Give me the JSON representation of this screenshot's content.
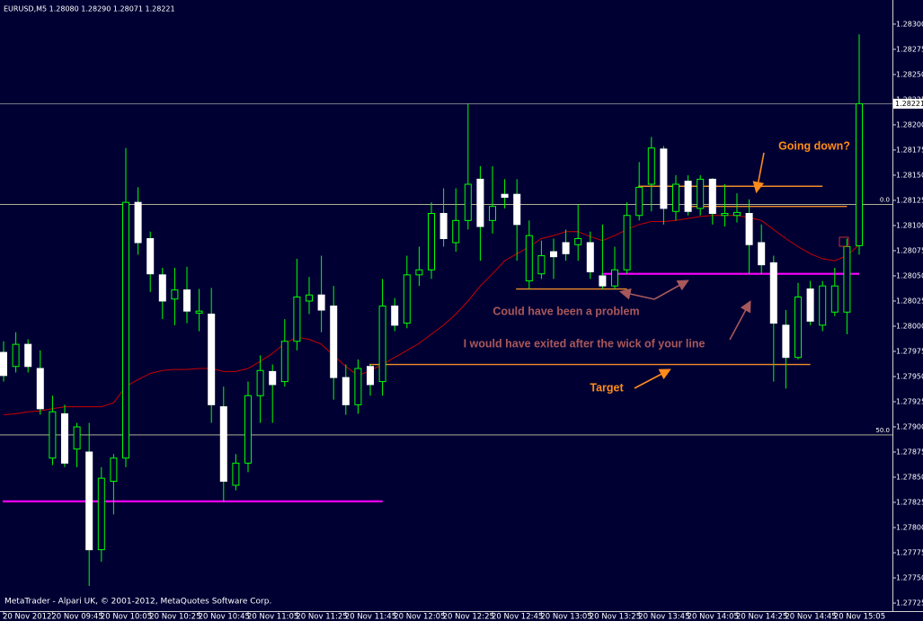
{
  "chart_data": {
    "type": "candlestick",
    "subtitle": "EURUSD,M5  1.28080 1.28290 1.28071 1.28221",
    "footer": "MetaTrader - Alpari UK, © 2001-2012, MetaQuotes Software Corp.",
    "categories": [
      "20 Nov 2012",
      null,
      null,
      null,
      "20 Nov 09:45",
      null,
      null,
      null,
      "20 Nov 10:05",
      null,
      null,
      null,
      "20 Nov 10:25",
      null,
      null,
      null,
      "20 Nov 10:45",
      null,
      null,
      null,
      "20 Nov 11:05",
      null,
      null,
      null,
      "20 Nov 11:25",
      null,
      null,
      null,
      "20 Nov 11:45",
      null,
      null,
      null,
      "20 Nov 12:05",
      null,
      null,
      null,
      "20 Nov 12:25",
      null,
      null,
      null,
      "20 Nov 12:45",
      null,
      null,
      null,
      "20 Nov 13:05",
      null,
      null,
      null,
      "20 Nov 13:25",
      null,
      null,
      null,
      "20 Nov 13:45",
      null,
      null,
      null,
      "20 Nov 14:05",
      null,
      null,
      null,
      "20 Nov 14:25",
      null,
      null,
      null,
      "20 Nov 14:45",
      null,
      null,
      null,
      "20 Nov 15:05",
      null,
      null
    ],
    "open": [
      1.27974,
      1.2796,
      1.27982,
      1.27958,
      1.27869,
      1.27913,
      1.27878,
      1.27875,
      1.27778,
      1.27846,
      1.27869,
      1.28123,
      1.28087,
      1.28051,
      1.28027,
      1.28036,
      1.28013,
      1.28012,
      1.2792,
      1.27842,
      1.27864,
      1.27931,
      1.27955,
      1.27945,
      1.27985,
      1.28025,
      1.28031,
      1.2802,
      1.27949,
      1.27922,
      1.2796,
      1.27945,
      1.2802,
      1.28003,
      1.28051,
      1.28056,
      1.28112,
      1.28083,
      1.28105,
      1.28146,
      1.28105,
      1.28131,
      1.28131,
      1.28045,
      1.28052,
      1.28074,
      1.28083,
      1.28081,
      1.28083,
      1.2805,
      1.2804,
      1.28056,
      1.2811,
      1.28141,
      1.28176,
      1.28114,
      1.28144,
      1.28117,
      1.28146,
      1.2811,
      1.2811,
      1.28112,
      1.28083,
      1.28063,
      1.28001,
      1.27969,
      1.28037,
      1.28001,
      1.28014,
      1.28014,
      1.2808
    ],
    "high": [
      1.27985,
      1.27994,
      1.27987,
      1.27976,
      1.27931,
      1.27922,
      1.27904,
      1.27904,
      1.2786,
      1.27873,
      1.28177,
      1.28138,
      1.28094,
      1.28058,
      1.28058,
      1.28059,
      1.28037,
      1.28038,
      1.2794,
      1.27873,
      1.27945,
      1.27971,
      1.27962,
      1.28007,
      1.28067,
      1.28049,
      1.2807,
      1.2804,
      1.27962,
      1.27967,
      1.27962,
      1.28047,
      1.28028,
      1.2807,
      1.28079,
      1.28123,
      1.28137,
      1.28137,
      1.28221,
      1.28159,
      1.28159,
      1.28146,
      1.28146,
      1.28105,
      1.28085,
      1.28087,
      1.28096,
      1.28121,
      1.28094,
      1.28101,
      1.28079,
      1.28123,
      1.28163,
      1.28188,
      1.28179,
      1.2815,
      1.2815,
      1.2815,
      1.28147,
      1.28141,
      1.28132,
      1.28126,
      1.28101,
      1.2807,
      1.28016,
      1.28043,
      1.28045,
      1.28045,
      1.28058,
      1.28087,
      1.2829
    ],
    "low": [
      1.27945,
      1.27954,
      1.27954,
      1.27912,
      1.27862,
      1.2786,
      1.2786,
      1.27742,
      1.27766,
      1.27813,
      1.2786,
      1.28071,
      1.28034,
      1.28007,
      1.28001,
      1.28003,
      1.27995,
      1.27904,
      1.27826,
      1.27837,
      1.27855,
      1.27904,
      1.27904,
      1.2794,
      1.27976,
      1.28012,
      1.27994,
      1.27927,
      1.27912,
      1.27913,
      1.27931,
      1.27931,
      1.27995,
      1.27998,
      1.2804,
      1.28047,
      1.28079,
      1.28074,
      1.28096,
      1.28065,
      1.28092,
      1.28117,
      1.28065,
      1.28037,
      1.28047,
      1.28047,
      1.28065,
      1.28065,
      1.28047,
      1.28037,
      1.28037,
      1.28052,
      1.28105,
      1.28114,
      1.28101,
      1.28105,
      1.2811,
      1.2811,
      1.28101,
      1.28099,
      1.28103,
      1.28052,
      1.28052,
      1.27945,
      1.27938,
      1.27967,
      1.28001,
      1.27995,
      1.2801,
      1.27992,
      1.28071
    ],
    "close": [
      1.27951,
      1.27982,
      1.2796,
      1.27918,
      1.27915,
      1.27864,
      1.279,
      1.27778,
      1.27849,
      1.27869,
      1.28123,
      1.28083,
      1.28052,
      1.28025,
      1.28036,
      1.28015,
      1.28015,
      1.27922,
      1.27846,
      1.27864,
      1.27931,
      1.27956,
      1.27942,
      1.27985,
      1.28029,
      1.28031,
      1.28016,
      1.27949,
      1.27922,
      1.27958,
      1.27942,
      1.2802,
      1.28001,
      1.28051,
      1.28056,
      1.28112,
      1.28087,
      1.28105,
      1.28141,
      1.28099,
      1.28119,
      1.28128,
      1.28101,
      1.2809,
      1.2807,
      1.28069,
      1.28072,
      1.28087,
      1.28054,
      1.2804,
      1.28056,
      1.2811,
      1.28138,
      1.28177,
      1.28117,
      1.28141,
      1.28114,
      1.28146,
      1.28112,
      1.28112,
      1.28113,
      1.28081,
      1.28061,
      1.28003,
      1.27969,
      1.28029,
      1.28005,
      1.2804,
      1.2804,
      1.28079,
      1.28221
    ],
    "bull_color": "#00ff00",
    "bear_color": "#ffffff",
    "ma": {
      "color": "#c80000",
      "values": [
        1.27912,
        1.27913,
        1.27915,
        1.27916,
        1.27918,
        1.2792,
        1.2792,
        1.2792,
        1.2792,
        1.27924,
        1.2794,
        1.27947,
        1.27953,
        1.27956,
        1.27957,
        1.27957,
        1.27958,
        1.27958,
        1.27955,
        1.27955,
        1.27958,
        1.27965,
        1.27973,
        1.27983,
        1.27989,
        1.27987,
        1.27982,
        1.27971,
        1.2796,
        1.27951,
        1.27956,
        1.27962,
        1.27969,
        1.27976,
        1.27983,
        1.27992,
        1.28001,
        1.28012,
        1.28025,
        1.2804,
        1.28052,
        1.28065,
        1.28072,
        1.28079,
        1.28087,
        1.2809,
        1.28094,
        1.28094,
        1.28089,
        1.28085,
        1.2809,
        1.28096,
        1.28101,
        1.28104,
        1.28104,
        1.28105,
        1.28107,
        1.28109,
        1.2811,
        1.2811,
        1.2811,
        1.28108,
        1.28105,
        1.28096,
        1.28087,
        1.28079,
        1.28072,
        1.28067,
        1.28065,
        1.2807,
        1.28081
      ]
    },
    "ylim": [
      1.27717,
      1.28324
    ],
    "yticks": [
      {
        "value": 1.283,
        "label": "1.28300"
      },
      1.28275,
      {
        "value": 1.2825,
        "label": "1.28250"
      },
      1.28225,
      {
        "value": 1.282,
        "label": "1.28200"
      },
      1.28175,
      {
        "value": 1.2815,
        "label": "1.28150"
      },
      1.28125,
      {
        "value": 1.281,
        "label": "1.28100"
      },
      1.28075,
      {
        "value": 1.2805,
        "label": "1.28050"
      },
      1.28025,
      {
        "value": 1.28,
        "label": "1.28000"
      },
      1.27975,
      {
        "value": 1.2795,
        "label": "1.27950"
      },
      1.27925,
      {
        "value": 1.279,
        "label": "1.27900"
      },
      1.27875,
      {
        "value": 1.2785,
        "label": "1.27850"
      },
      1.27825,
      {
        "value": 1.278,
        "label": "1.27800"
      },
      1.27775,
      {
        "value": 1.2775,
        "label": "1.27750"
      },
      1.27725
    ],
    "grid": false,
    "levels": [
      {
        "value": 1.28121,
        "label": "0.0"
      },
      {
        "value": 1.27892,
        "label": "50.0"
      }
    ],
    "bid": {
      "value": 1.28221,
      "label": "1.28221"
    },
    "lines": [
      {
        "value": 1.27826,
        "from": 0,
        "to": 31,
        "color": "#ff00ff"
      },
      {
        "value": 1.28052,
        "from": 49,
        "to": 70,
        "color": "#ff00ff"
      },
      {
        "value": 1.28139,
        "from": 52,
        "to": 67,
        "color": "#f08c28"
      },
      {
        "value": 1.28119,
        "from": 56,
        "to": 69,
        "color": "#f08c28"
      },
      {
        "value": 1.28037,
        "from": 42,
        "to": 51,
        "color": "#f08c28"
      },
      {
        "value": 1.27962,
        "from": 30,
        "to": 66,
        "color": "#f08c28"
      }
    ],
    "annotations": [
      {
        "text": "Going down?",
        "color": "#ff8c1a"
      },
      {
        "text": "Could have been a problem",
        "color": "#a8585a"
      },
      {
        "text": "I would have exited after the wick of your line",
        "color": "#a8585a"
      },
      {
        "text": "Target",
        "color": "#ff8c1a"
      }
    ]
  }
}
